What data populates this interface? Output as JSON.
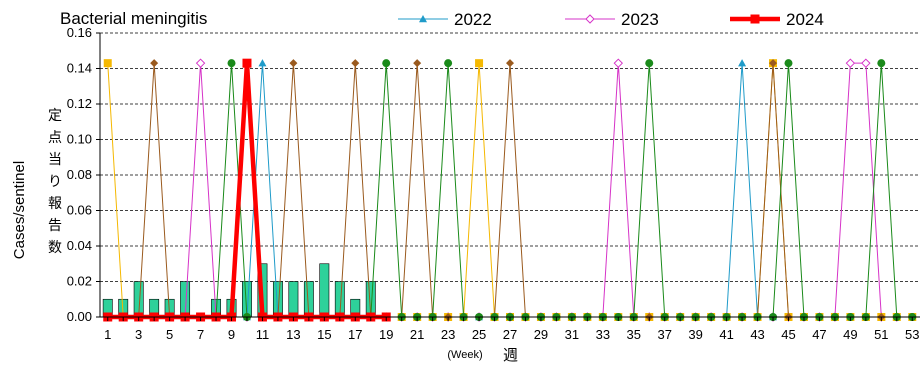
{
  "chart_data": {
    "type": "line",
    "title": "Bacterial meningitis",
    "ylabel": "Cases/sentinel",
    "ylabel_jp": "定点当り報告数",
    "xlabel_en": "(Week)",
    "xlabel_jp": "週",
    "xlim": [
      1,
      53
    ],
    "ylim": [
      0,
      0.16
    ],
    "y_ticks": [
      "0.00",
      "0.02",
      "0.04",
      "0.06",
      "0.08",
      "0.10",
      "0.12",
      "0.14",
      "0.16"
    ],
    "x_ticks": [
      "1",
      "3",
      "5",
      "7",
      "9",
      "11",
      "13",
      "15",
      "17",
      "19",
      "21",
      "23",
      "25",
      "27",
      "29",
      "31",
      "33",
      "35",
      "37",
      "39",
      "41",
      "43",
      "45",
      "47",
      "49",
      "51",
      "53"
    ],
    "grid": "horizontal-dashed",
    "legend_position": "top",
    "legend_entries": [
      {
        "label": "2022",
        "color": "#1f9bc9",
        "marker": "triangle"
      },
      {
        "label": "2023",
        "color": "#d633c8",
        "marker": "diamond-open"
      },
      {
        "label": "2024",
        "color": "#ff0000",
        "marker": "square"
      }
    ],
    "bars": {
      "name": "",
      "color": "#2ed19a",
      "values": [
        0.01,
        0.01,
        0.02,
        0.01,
        0.01,
        0.02,
        0,
        0.01,
        0.01,
        0.02,
        0.03,
        0.02,
        0.02,
        0.02,
        0.03,
        0.02,
        0.01,
        0.02
      ]
    },
    "series": [
      {
        "name": "2022",
        "color": "#1f9bc9",
        "marker": "triangle",
        "width": 1,
        "values": [
          0,
          0,
          0,
          0,
          0,
          0,
          0,
          0,
          0,
          0,
          0.143,
          0,
          0,
          0,
          0,
          0,
          0,
          0,
          0,
          0,
          0,
          0,
          0,
          0,
          0,
          0,
          0,
          0,
          0,
          0,
          0,
          0,
          0,
          0,
          0,
          0,
          0,
          0,
          0,
          0,
          0,
          0.143,
          0,
          0,
          0,
          0,
          0,
          0,
          0,
          0,
          0,
          0
        ]
      },
      {
        "name": "2023",
        "color": "#d633c8",
        "marker": "diamond-open",
        "width": 1,
        "values": [
          0,
          0,
          0,
          0,
          0,
          0,
          0.143,
          0,
          0,
          0,
          0,
          0,
          0,
          0,
          0,
          0,
          0,
          0,
          0,
          0,
          0,
          0,
          0,
          0,
          0,
          0,
          0,
          0,
          0,
          0,
          0,
          0,
          0,
          0.143,
          0,
          0,
          0,
          0,
          0,
          0,
          0,
          0,
          0,
          0,
          0,
          0,
          0,
          0,
          0.143,
          0.143,
          0,
          0
        ]
      },
      {
        "name": "",
        "color": "#f5b800",
        "marker": "square",
        "width": 1,
        "values": [
          0.143,
          0,
          0,
          0,
          0,
          0,
          0,
          0,
          0,
          0.143,
          0,
          0,
          0,
          0,
          0,
          0,
          0,
          0,
          0,
          0,
          0,
          0,
          0,
          0,
          0.143,
          0,
          0,
          0,
          0,
          0,
          0,
          0,
          0,
          0,
          0,
          0,
          0,
          0,
          0,
          0,
          0,
          0,
          0,
          0.143,
          0,
          0,
          0,
          0,
          0,
          0,
          0,
          0,
          0
        ]
      },
      {
        "name": "",
        "color": "#9a5a1e",
        "marker": "diamond",
        "width": 1,
        "values": [
          0,
          0,
          0,
          0.143,
          0,
          0,
          0,
          0,
          0,
          0,
          0,
          0,
          0.143,
          0,
          0,
          0,
          0.143,
          0,
          0,
          0,
          0.143,
          0,
          0,
          0,
          0,
          0,
          0.143,
          0,
          0,
          0,
          0,
          0,
          0,
          0,
          0,
          0,
          0,
          0,
          0,
          0,
          0,
          0,
          0,
          0.143,
          0,
          0,
          0,
          0,
          0,
          0,
          0,
          0,
          0
        ]
      },
      {
        "name": "",
        "color": "#1a8a1a",
        "marker": "circle",
        "width": 1,
        "values": [
          0,
          0,
          0,
          0,
          0,
          0,
          0,
          0,
          0.143,
          0,
          0,
          0,
          0,
          0,
          0,
          0,
          0,
          0,
          0.143,
          0,
          0,
          0,
          0.143,
          0,
          0,
          0,
          0,
          0,
          0,
          0,
          0,
          0,
          0,
          0,
          0,
          0.143,
          0,
          0,
          0,
          0,
          0,
          0,
          0,
          0,
          0.143,
          0,
          0,
          0,
          0,
          0,
          0.143,
          0,
          0
        ]
      },
      {
        "name": "2024",
        "color": "#ff0000",
        "marker": "square",
        "width": 4.5,
        "values": [
          0,
          0,
          0,
          0,
          0,
          0,
          0,
          0,
          0,
          0.143,
          0,
          0,
          0,
          0,
          0,
          0,
          0,
          0,
          0
        ]
      }
    ]
  }
}
